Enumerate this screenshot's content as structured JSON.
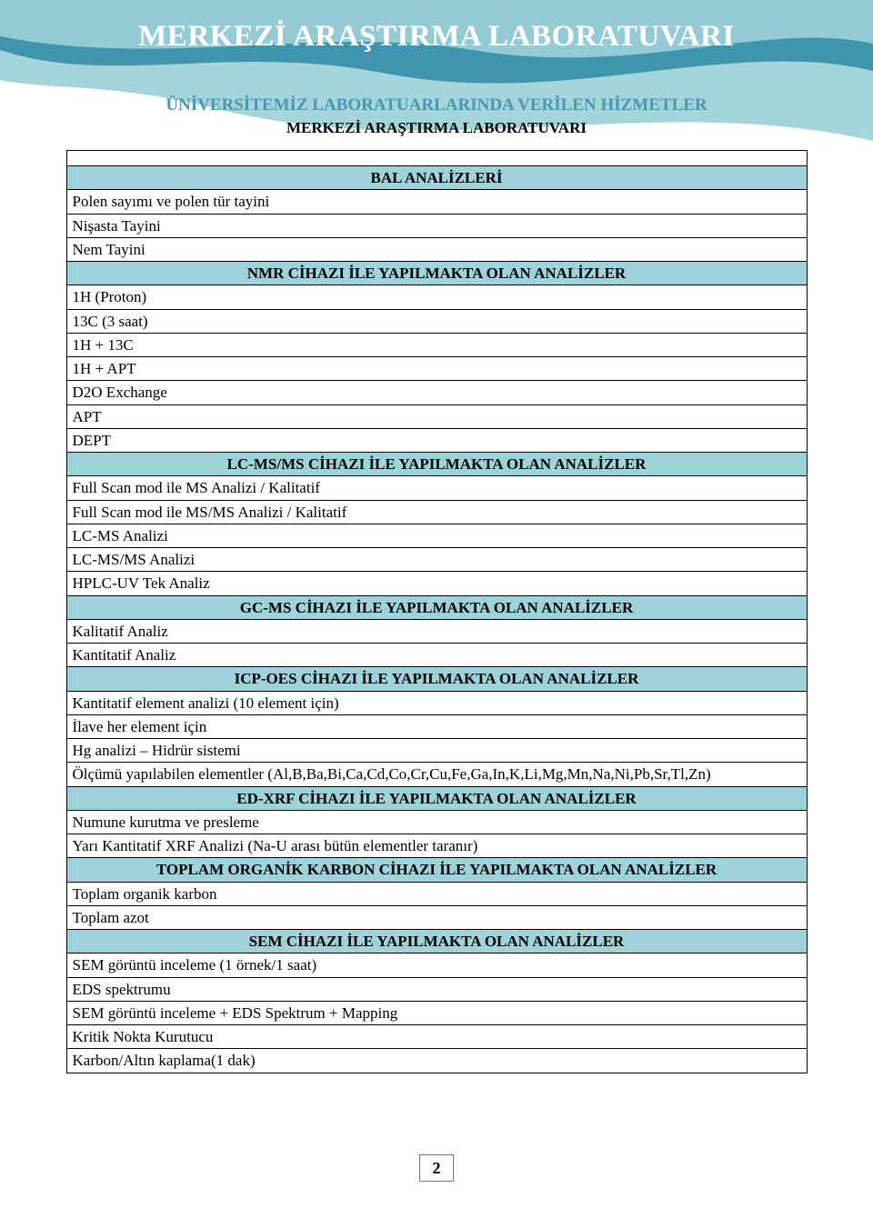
{
  "colors": {
    "band_dark": "#3f94ae",
    "band_mid": "#a3d5db",
    "section_bg": "#9dd3d9",
    "main_title": "#ffffff",
    "sub_header": "#4898b0",
    "sub_header2": "#000000",
    "text": "#000000",
    "border": "#000000"
  },
  "fonts": {
    "main_title_size": 33,
    "sub_header_size": 19,
    "sub_header2_size": 17,
    "row_size": 17
  },
  "header": {
    "main_title": "MERKEZİ ARAŞTIRMA LABORATUVARI",
    "sub1": "ÜNİVERSİTEMİZ LABORATUARLARINDA VERİLEN HİZMETLER",
    "sub2": "MERKEZİ ARAŞTIRMA LABORATUVARI"
  },
  "sections": [
    {
      "title": "BAL ANALİZLERİ",
      "rows": [
        "Polen sayımı ve polen tür tayini",
        "Nişasta Tayini",
        "Nem Tayini"
      ]
    },
    {
      "title": "NMR CİHAZI İLE YAPILMAKTA OLAN ANALİZLER",
      "rows": [
        "1H (Proton)",
        "13C (3 saat)",
        "1H + 13C",
        "1H + APT",
        "D2O Exchange",
        "APT",
        "DEPT"
      ]
    },
    {
      "title": "LC-MS/MS CİHAZI İLE YAPILMAKTA OLAN ANALİZLER",
      "rows": [
        "Full Scan mod ile MS Analizi / Kalitatif",
        "Full Scan mod ile MS/MS Analizi / Kalitatif",
        "LC-MS Analizi",
        "LC-MS/MS Analizi",
        "HPLC-UV Tek Analiz"
      ]
    },
    {
      "title": "GC-MS CİHAZI İLE YAPILMAKTA OLAN ANALİZLER",
      "rows": [
        "Kalitatif Analiz",
        "Kantitatif Analiz"
      ]
    },
    {
      "title": "ICP-OES CİHAZI İLE YAPILMAKTA OLAN ANALİZLER",
      "rows": [
        "Kantitatif element analizi  (10 element için)",
        "İlave her element için",
        "Hg analizi – Hidrür sistemi",
        "Ölçümü yapılabilen elementler (Al,B,Ba,Bi,Ca,Cd,Co,Cr,Cu,Fe,Ga,In,K,Li,Mg,Mn,Na,Ni,Pb,Sr,Tl,Zn)"
      ]
    },
    {
      "title": "ED-XRF CİHAZI İLE YAPILMAKTA OLAN ANALİZLER",
      "rows": [
        "Numune kurutma ve presleme",
        "Yarı Kantitatif XRF Analizi  (Na-U arası bütün elementler taranır)"
      ]
    },
    {
      "title": "TOPLAM ORGANİK KARBON CİHAZI İLE YAPILMAKTA OLAN ANALİZLER",
      "rows": [
        "Toplam organik karbon",
        "Toplam azot"
      ]
    },
    {
      "title": "SEM CİHAZI İLE YAPILMAKTA OLAN ANALİZLER",
      "rows": [
        "SEM görüntü inceleme             (1 örnek/1 saat)",
        "EDS spektrumu",
        "SEM görüntü inceleme + EDS Spektrum + Mapping",
        "Kritik Nokta Kurutucu",
        "Karbon/Altın kaplama(1 dak)"
      ]
    }
  ],
  "page_number": "2"
}
